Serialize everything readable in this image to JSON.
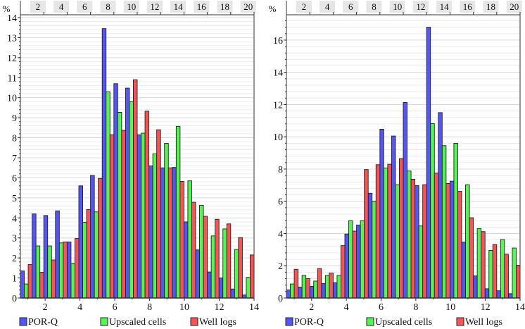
{
  "legend": [
    {
      "label": "POR-Q",
      "color": "#5555f5"
    },
    {
      "label": "Upscaled cells",
      "color": "#55f555"
    },
    {
      "label": "Well logs",
      "color": "#f55555"
    }
  ],
  "chart_data": [
    {
      "type": "bar",
      "title": "",
      "ylabel": "%",
      "xlabel": "",
      "ylim": [
        0,
        14.14
      ],
      "xlim": [
        0.58,
        14
      ],
      "yticks": [
        "0",
        "1",
        "2",
        "3",
        "4",
        "5",
        "6",
        "7",
        "8",
        "9",
        "10",
        "11",
        "12",
        "13",
        "14"
      ],
      "xticks": [
        "2",
        "4",
        "6",
        "8",
        "10",
        "12",
        "14"
      ],
      "top_ticks": [
        "2",
        "4",
        "6",
        "8",
        "10",
        "12",
        "14",
        "16",
        "18",
        "20"
      ],
      "grid": true,
      "legend_position": "bottom",
      "series": [
        {
          "name": "POR-Q",
          "values": [
            1.35,
            4.2,
            4.12,
            4.35,
            2.8,
            5.6,
            6.12,
            13.45,
            10.7,
            10.48,
            8.15,
            6.6,
            6.5,
            6.52,
            3.8,
            2.4,
            1.3,
            1.0,
            0.45,
            0.15
          ]
        },
        {
          "name": "Upscaled cells",
          "values": [
            0.7,
            2.6,
            2.6,
            2.75,
            1.73,
            3.78,
            4.3,
            10.3,
            9.27,
            9.8,
            8.23,
            7.2,
            7.72,
            8.57,
            5.85,
            4.63,
            3.1,
            3.45,
            2.42,
            1.03
          ]
        },
        {
          "name": "Well logs",
          "values": [
            1.67,
            1.28,
            1.9,
            2.8,
            2.97,
            4.42,
            5.97,
            8.15,
            8.37,
            10.9,
            9.33,
            8.4,
            6.5,
            5.82,
            4.78,
            4.08,
            3.93,
            3.7,
            3.02,
            2.15
          ]
        }
      ]
    },
    {
      "type": "bar",
      "title": "",
      "ylabel": "%",
      "xlabel": "",
      "ylim": [
        0,
        17.57
      ],
      "xlim": [
        0.55,
        14
      ],
      "yticks": [
        "0",
        "2",
        "4",
        "6",
        "8",
        "10",
        "12",
        "14",
        "16"
      ],
      "xticks": [
        "2",
        "4",
        "6",
        "8",
        "10",
        "12",
        "14"
      ],
      "top_ticks": [
        "2",
        "4",
        "6",
        "8",
        "10",
        "12",
        "14",
        "16",
        "18",
        "20"
      ],
      "grid": true,
      "legend_position": "bottom",
      "series": [
        {
          "name": "POR-Q",
          "values": [
            0.5,
            0.68,
            0.72,
            0.9,
            0.95,
            3.97,
            4.53,
            6.5,
            10.47,
            10.05,
            12.13,
            6.98,
            16.8,
            11.5,
            7.25,
            3.47,
            1.37,
            0.57,
            0.45,
            0.27
          ]
        },
        {
          "name": "Upscaled cells",
          "values": [
            0.87,
            1.4,
            1.05,
            1.4,
            1.4,
            4.8,
            4.8,
            6.0,
            8.07,
            7.03,
            7.88,
            4.47,
            10.82,
            9.45,
            9.6,
            7.03,
            4.3,
            2.95,
            3.63,
            3.1
          ]
        },
        {
          "name": "Well logs",
          "values": [
            1.78,
            1.2,
            1.82,
            1.55,
            3.25,
            4.15,
            7.97,
            8.27,
            8.3,
            8.65,
            7.37,
            7.03,
            7.75,
            7.1,
            6.62,
            4.98,
            4.12,
            3.32,
            2.72,
            2.03
          ]
        }
      ]
    }
  ]
}
